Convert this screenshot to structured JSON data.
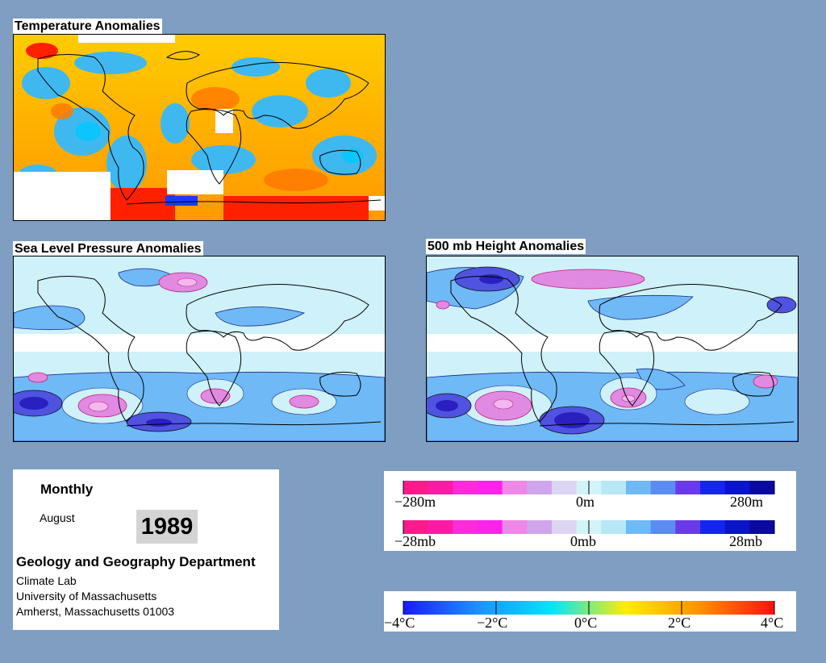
{
  "panels": {
    "temperature": {
      "title": "Temperature Anomalies"
    },
    "slp": {
      "title": "Sea Level Pressure Anomalies"
    },
    "height500": {
      "title": "500 mb Height Anomalies"
    }
  },
  "info": {
    "period": "Monthly",
    "month": "August",
    "year": "1989",
    "department": "Geology and Geography Department",
    "lines": [
      "Climate Lab",
      "University of Massachusetts",
      "Amherst, Massachusetts 01003"
    ]
  },
  "legends": {
    "height": {
      "labels": [
        "−280m",
        "0m",
        "280m"
      ],
      "colors": [
        "#ff1a8c",
        "#ff1aa6",
        "#ff2ad8",
        "#ff22ea",
        "#ee88e8",
        "#cfa6ec",
        "#dcd6f2",
        "#d2f4f8",
        "#b8e8f6",
        "#6fb9f6",
        "#5c8cf2",
        "#6a3ae8",
        "#1426ee",
        "#0a14c8",
        "#0a0aa2"
      ]
    },
    "pressure": {
      "labels": [
        "−28mb",
        "0mb",
        "28mb"
      ],
      "colors": [
        "#ff1a8c",
        "#ff1aa6",
        "#ff2ad8",
        "#ff22ea",
        "#ee88e8",
        "#cfa6ec",
        "#dcd6f2",
        "#d2f4f8",
        "#b8e8f6",
        "#6fb9f6",
        "#5c8cf2",
        "#6a3ae8",
        "#1426ee",
        "#0a14c8",
        "#0a0aa2"
      ]
    },
    "temperature": {
      "labels": [
        "−4°C",
        "−2°C",
        "0°C",
        "2°C",
        "4°C"
      ],
      "stops": [
        "#1a1aff",
        "#1e90ff",
        "#00e5ff",
        "#ffee00",
        "#ff9000",
        "#ff1010"
      ]
    }
  },
  "colors": {
    "background": "#7f9ec2",
    "warm": "#ffb300",
    "cool": "#3fb8f0",
    "slp_base": "#cff1f9",
    "slp_low": "#6fb9f6",
    "slp_deep": "#5052e0",
    "slp_high": "#e08ae2"
  }
}
